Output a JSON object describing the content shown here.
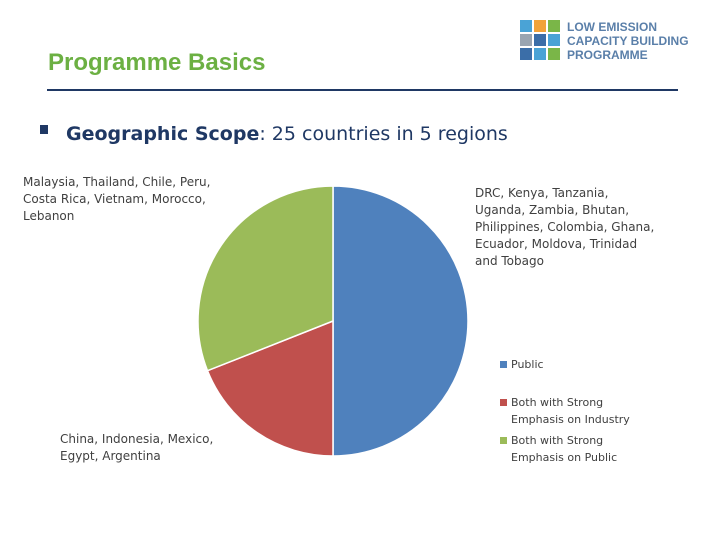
{
  "header": {
    "title": "Programme Basics",
    "logo_lines": [
      "LOW EMISSION",
      "CAPACITY BUILDING",
      "PROGRAMME"
    ]
  },
  "bullet": {
    "label": "Geographic Scope",
    "text": ": 25 countries in 5 regions"
  },
  "chart_data": {
    "type": "pie",
    "categories": [
      "Public",
      "Both with Strong Emphasis on Industry",
      "Both with Strong Emphasis on Public"
    ],
    "values": [
      50,
      19,
      31
    ],
    "colors": [
      "#4f81bd",
      "#c0504d",
      "#9bbb59"
    ],
    "annotations": [
      "DRC, Kenya, Tanzania, Uganda, Zambia, Bhutan, Philippines, Colombia, Ghana, Ecuador, Moldova, Trinidad and Tobago",
      "China, Indonesia, Mexico, Egypt, Argentina",
      "Malaysia, Thailand, Chile, Peru, Costa Rica, Vietnam, Morocco, Lebanon"
    ],
    "legend": "right"
  }
}
